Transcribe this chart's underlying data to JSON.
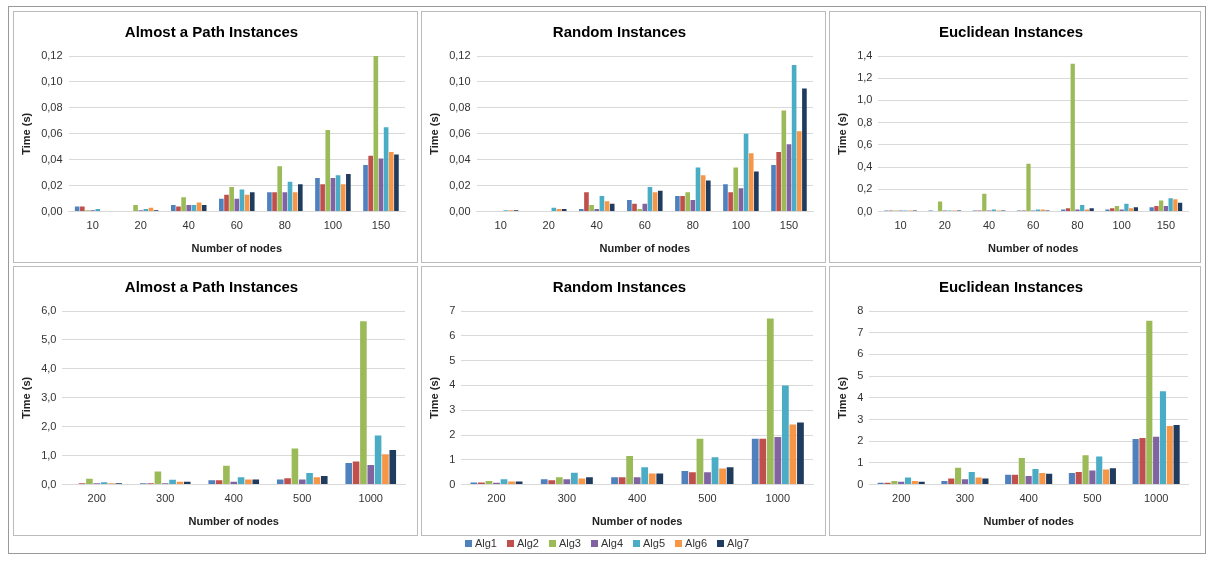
{
  "chart_data": [
    {
      "type": "bar",
      "title": "Almost a Path Instances",
      "xlabel": "Number of nodes",
      "ylabel": "Time (s)",
      "categories": [
        "10",
        "20",
        "40",
        "60",
        "80",
        "100",
        "150"
      ],
      "legend": "bottom",
      "grid": "y",
      "ylim": [
        0,
        0.12
      ],
      "yticks": [
        {
          "value": 0,
          "label": "0,00"
        },
        {
          "value": 0.02,
          "label": "0,02"
        },
        {
          "value": 0.04,
          "label": "0,04"
        },
        {
          "value": 0.06,
          "label": "0,06"
        },
        {
          "value": 0.08,
          "label": "0,08"
        },
        {
          "value": 0.1,
          "label": "0,10"
        },
        {
          "value": 0.12,
          "label": "0,12"
        }
      ],
      "series": [
        {
          "name": "Alg1",
          "color": "#4f81bd",
          "values": [
            0.004,
            0,
            0.005,
            0.01,
            0.015,
            0.026,
            0.036
          ]
        },
        {
          "name": "Alg2",
          "color": "#c0504d",
          "values": [
            0.004,
            0,
            0.004,
            0.013,
            0.015,
            0.021,
            0.043
          ]
        },
        {
          "name": "Alg3",
          "color": "#9bbb59",
          "values": [
            0.001,
            0.005,
            0.011,
            0.019,
            0.035,
            0.063,
            0.12
          ]
        },
        {
          "name": "Alg4",
          "color": "#8064a2",
          "values": [
            0.001,
            0.001,
            0.005,
            0.01,
            0.015,
            0.026,
            0.041
          ]
        },
        {
          "name": "Alg5",
          "color": "#4bacc6",
          "values": [
            0.002,
            0.002,
            0.005,
            0.017,
            0.023,
            0.028,
            0.065
          ]
        },
        {
          "name": "Alg6",
          "color": "#f79646",
          "values": [
            0,
            0.003,
            0.007,
            0.013,
            0.015,
            0.021,
            0.046
          ]
        },
        {
          "name": "Alg7",
          "color": "#1f3b5e",
          "values": [
            0,
            0.001,
            0.005,
            0.015,
            0.021,
            0.029,
            0.044
          ]
        }
      ]
    },
    {
      "type": "bar",
      "title": "Random Instances",
      "xlabel": "Number of nodes",
      "ylabel": "Time (s)",
      "categories": [
        "10",
        "20",
        "40",
        "60",
        "80",
        "100",
        "150"
      ],
      "grid": "y",
      "ylim": [
        0,
        0.12
      ],
      "yticks": [
        {
          "value": 0,
          "label": "0,00"
        },
        {
          "value": 0.02,
          "label": "0,02"
        },
        {
          "value": 0.04,
          "label": "0,04"
        },
        {
          "value": 0.06,
          "label": "0,06"
        },
        {
          "value": 0.08,
          "label": "0,08"
        },
        {
          "value": 0.1,
          "label": "0,10"
        },
        {
          "value": 0.12,
          "label": "0,12"
        }
      ],
      "series": [
        {
          "color": "#4f81bd",
          "values": [
            0,
            0,
            0.002,
            0.009,
            0.012,
            0.021,
            0.036
          ]
        },
        {
          "color": "#c0504d",
          "values": [
            0,
            0,
            0.015,
            0.006,
            0.012,
            0.015,
            0.046
          ]
        },
        {
          "color": "#9bbb59",
          "values": [
            0,
            0,
            0.005,
            0.002,
            0.015,
            0.034,
            0.078
          ]
        },
        {
          "color": "#8064a2",
          "values": [
            0,
            0,
            0.002,
            0.006,
            0.009,
            0.018,
            0.052
          ]
        },
        {
          "color": "#4bacc6",
          "values": [
            0.001,
            0.003,
            0.012,
            0.019,
            0.034,
            0.06,
            0.113
          ]
        },
        {
          "color": "#f79646",
          "values": [
            0.001,
            0.002,
            0.008,
            0.015,
            0.028,
            0.045,
            0.062
          ]
        },
        {
          "color": "#1f3b5e",
          "values": [
            0.001,
            0.002,
            0.006,
            0.016,
            0.024,
            0.031,
            0.095
          ]
        }
      ]
    },
    {
      "type": "bar",
      "title": "Euclidean Instances",
      "xlabel": "Number of nodes",
      "ylabel": "Time (s)",
      "categories": [
        "10",
        "20",
        "40",
        "60",
        "80",
        "100",
        "150"
      ],
      "grid": "y",
      "ylim": [
        0,
        1.4
      ],
      "yticks": [
        {
          "value": 0,
          "label": "0,0"
        },
        {
          "value": 0.2,
          "label": "0,2"
        },
        {
          "value": 0.4,
          "label": "0,4"
        },
        {
          "value": 0.6,
          "label": "0,6"
        },
        {
          "value": 0.8,
          "label": "0,8"
        },
        {
          "value": 1.0,
          "label": "1,0"
        },
        {
          "value": 1.2,
          "label": "1,2"
        },
        {
          "value": 1.4,
          "label": "1,4"
        }
      ],
      "series": [
        {
          "color": "#4f81bd",
          "values": [
            0.01,
            0.01,
            0.01,
            0.01,
            0.02,
            0.02,
            0.04
          ]
        },
        {
          "color": "#c0504d",
          "values": [
            0.01,
            0,
            0.01,
            0.01,
            0.03,
            0.03,
            0.05
          ]
        },
        {
          "color": "#9bbb59",
          "values": [
            0.01,
            0.09,
            0.16,
            0.43,
            1.33,
            0.05,
            0.1
          ]
        },
        {
          "color": "#8064a2",
          "values": [
            0.01,
            0.01,
            0.01,
            0.01,
            0.02,
            0.02,
            0.05
          ]
        },
        {
          "color": "#4bacc6",
          "values": [
            0.01,
            0.01,
            0.02,
            0.02,
            0.06,
            0.07,
            0.12
          ]
        },
        {
          "color": "#f79646",
          "values": [
            0.01,
            0.01,
            0.01,
            0.02,
            0.02,
            0.03,
            0.11
          ]
        },
        {
          "color": "#1f3b5e",
          "values": [
            0.01,
            0.01,
            0.01,
            0.01,
            0.03,
            0.04,
            0.08
          ]
        }
      ]
    },
    {
      "type": "bar",
      "title": "Almost a Path Instances",
      "xlabel": "Number of nodes",
      "ylabel": "Time (s)",
      "categories": [
        "200",
        "300",
        "400",
        "500",
        "1000"
      ],
      "grid": "y",
      "ylim": [
        0,
        6
      ],
      "yticks": [
        {
          "value": 0,
          "label": "0,0"
        },
        {
          "value": 1,
          "label": "1,0"
        },
        {
          "value": 2,
          "label": "2,0"
        },
        {
          "value": 3,
          "label": "3,0"
        },
        {
          "value": 4,
          "label": "4,0"
        },
        {
          "value": 5,
          "label": "5,0"
        },
        {
          "value": 6,
          "label": "6,0"
        }
      ],
      "series": [
        {
          "color": "#4f81bd",
          "values": [
            null,
            0.05,
            0.15,
            0.18,
            0.75
          ]
        },
        {
          "color": "#c0504d",
          "values": [
            0.05,
            0.05,
            0.15,
            0.22,
            0.8
          ]
        },
        {
          "color": "#9bbb59",
          "values": [
            0.2,
            0.45,
            0.65,
            1.25,
            5.65
          ]
        },
        {
          "color": "#8064a2",
          "values": [
            0.05,
            0.05,
            0.1,
            0.18,
            0.68
          ]
        },
        {
          "color": "#4bacc6",
          "values": [
            0.08,
            0.17,
            0.25,
            0.4,
            1.7
          ]
        },
        {
          "color": "#f79646",
          "values": [
            0.05,
            0.1,
            0.18,
            0.25,
            1.05
          ]
        },
        {
          "color": "#1f3b5e",
          "values": [
            0.05,
            0.1,
            0.18,
            0.3,
            1.2
          ]
        }
      ]
    },
    {
      "type": "bar",
      "title": "Random Instances",
      "xlabel": "Number of nodes",
      "ylabel": "Time (s)",
      "categories": [
        "200",
        "300",
        "400",
        "500",
        "1000"
      ],
      "grid": "y",
      "ylim": [
        0,
        7
      ],
      "yticks": [
        0,
        1,
        2,
        3,
        4,
        5,
        6,
        7
      ],
      "series": [
        {
          "color": "#4f81bd",
          "values": [
            0.08,
            0.22,
            0.3,
            0.55,
            1.85
          ]
        },
        {
          "color": "#c0504d",
          "values": [
            0.08,
            0.18,
            0.3,
            0.5,
            1.85
          ]
        },
        {
          "color": "#9bbb59",
          "values": [
            0.15,
            0.3,
            1.15,
            1.85,
            6.7
          ]
        },
        {
          "color": "#8064a2",
          "values": [
            0.07,
            0.22,
            0.3,
            0.5,
            1.92
          ]
        },
        {
          "color": "#4bacc6",
          "values": [
            0.22,
            0.48,
            0.7,
            1.1,
            4.0
          ]
        },
        {
          "color": "#f79646",
          "values": [
            0.13,
            0.25,
            0.45,
            0.65,
            2.42
          ]
        },
        {
          "color": "#1f3b5e",
          "values": [
            0.13,
            0.3,
            0.45,
            0.7,
            2.5
          ]
        }
      ]
    },
    {
      "type": "bar",
      "title": "Euclidean Instances",
      "xlabel": "Number of nodes",
      "ylabel": "Time (s)",
      "categories": [
        "200",
        "300",
        "400",
        "500",
        "1000"
      ],
      "grid": "y",
      "ylim": [
        0,
        8
      ],
      "yticks": [
        0,
        1,
        2,
        3,
        4,
        5,
        6,
        7,
        8
      ],
      "series": [
        {
          "color": "#4f81bd",
          "values": [
            0.08,
            0.17,
            0.45,
            0.53,
            2.1
          ]
        },
        {
          "color": "#c0504d",
          "values": [
            0.08,
            0.28,
            0.45,
            0.58,
            2.15
          ]
        },
        {
          "color": "#9bbb59",
          "values": [
            0.17,
            0.78,
            1.23,
            1.35,
            7.55
          ]
        },
        {
          "color": "#8064a2",
          "values": [
            0.13,
            0.25,
            0.4,
            0.65,
            2.2
          ]
        },
        {
          "color": "#4bacc6",
          "values": [
            0.33,
            0.58,
            0.72,
            1.3,
            4.3
          ]
        },
        {
          "color": "#f79646",
          "values": [
            0.17,
            0.33,
            0.53,
            0.7,
            2.7
          ]
        },
        {
          "color": "#1f3b5e",
          "values": [
            0.13,
            0.28,
            0.5,
            0.75,
            2.75
          ]
        }
      ]
    }
  ]
}
